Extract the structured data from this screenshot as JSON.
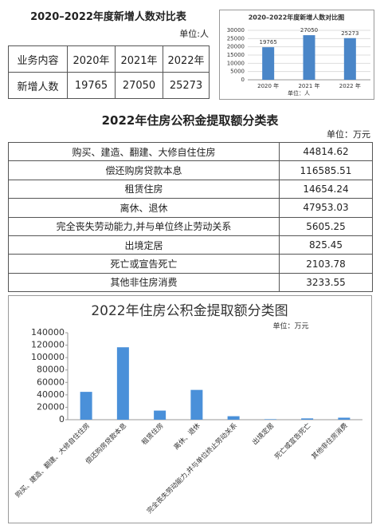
{
  "table1": {
    "title": "2020–2022年度新增人数对比表",
    "unit": "单位:人",
    "header": [
      "业务内容",
      "2020年",
      "2021年",
      "2022年"
    ],
    "rows": [
      [
        "新增人数",
        "19765",
        "27050",
        "25273"
      ]
    ]
  },
  "chart_data": [
    {
      "type": "bar",
      "title": "2020–2022年度新增人数对比图",
      "unit": "单位：人",
      "categories": [
        "2020 年",
        "2021 年",
        "2022 年"
      ],
      "values": [
        19765,
        27050,
        25273
      ],
      "color": "#4a86c8",
      "ylim": [
        0,
        30000
      ],
      "yticks": [
        0,
        5000,
        10000,
        15000,
        20000,
        25000,
        30000
      ],
      "grid": true
    },
    {
      "type": "bar",
      "title": "2022年住房公积金提取额分类图",
      "unit": "单位：万元",
      "categories": [
        "购买、建造、翻建、大修自住住房",
        "偿还购房贷款本息",
        "租赁住房",
        "离休、退休",
        "完全丧失劳动能力,并与单位终止劳动关系",
        "出境定居",
        "死亡或宣告死亡",
        "其他非住房消费"
      ],
      "values": [
        44814.62,
        116585.51,
        14654.24,
        47953.03,
        5605.25,
        825.45,
        2103.78,
        3233.55
      ],
      "color": "#4a90d9",
      "ylim": [
        0,
        140000
      ],
      "yticks": [
        0,
        20000,
        40000,
        60000,
        80000,
        100000,
        120000,
        140000
      ],
      "grid": false
    }
  ],
  "table2": {
    "title": "2022年住房公积金提取额分类表",
    "unit": "单位：万元",
    "rows": [
      [
        "购买、建造、翻建、大修自住住房",
        "44814.62"
      ],
      [
        "偿还购房贷款本息",
        "116585.51"
      ],
      [
        "租赁住房",
        "14654.24"
      ],
      [
        "离休、退休",
        "47953.03"
      ],
      [
        "完全丧失劳动能力,并与单位终止劳动关系",
        "5605.25"
      ],
      [
        "出境定居",
        "825.45"
      ],
      [
        "死亡或宣告死亡",
        "2103.78"
      ],
      [
        "其他非住房消费",
        "3233.55"
      ]
    ]
  }
}
